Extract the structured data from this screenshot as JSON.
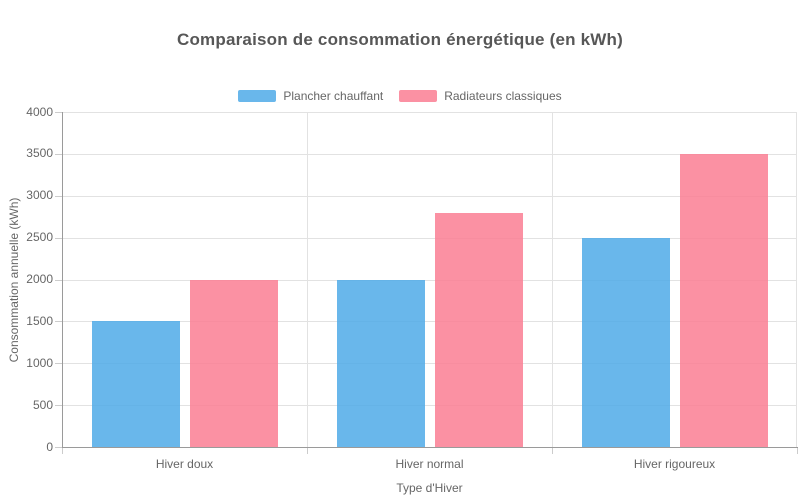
{
  "chart_data": {
    "type": "bar",
    "title": "Comparaison de consommation énergétique (en kWh)",
    "xlabel": "Type d'Hiver",
    "ylabel": "Consommation annuelle (kWh)",
    "categories": [
      "Hiver doux",
      "Hiver normal",
      "Hiver rigoureux"
    ],
    "series": [
      {
        "name": "Plancher chauffant",
        "color": "rgba(79,170,232,0.85)",
        "values": [
          1500,
          2000,
          2500
        ]
      },
      {
        "name": "Radiateurs classiques",
        "color": "rgba(250,126,147,0.85)",
        "values": [
          2000,
          2800,
          3500
        ]
      }
    ],
    "ylim": [
      0,
      4000
    ],
    "yticks": [
      0,
      500,
      1000,
      1500,
      2000,
      2500,
      3000,
      3500,
      4000
    ],
    "grid": true,
    "legend_position": "top"
  },
  "style_colors": {
    "title_text": "#575757",
    "axis_text": "#666666",
    "axis_line": "#9a9a9a",
    "gridline": "#e2e2e2",
    "tick_mark": "#cccccc",
    "background": "#ffffff"
  }
}
